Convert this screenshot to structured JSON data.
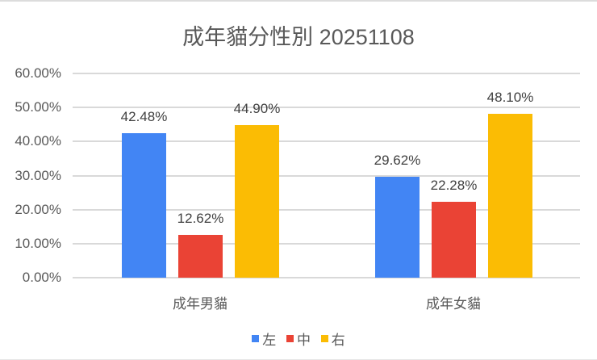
{
  "chart_data": {
    "type": "bar",
    "title": "成年貓分性別 20251108",
    "xlabel": "",
    "ylabel": "",
    "ylim": [
      0,
      0.6
    ],
    "yticks": [
      "0.00%",
      "10.00%",
      "20.00%",
      "30.00%",
      "40.00%",
      "50.00%",
      "60.00%"
    ],
    "grid": true,
    "legend_position": "bottom",
    "categories": [
      "成年男貓",
      "成年女貓"
    ],
    "series": [
      {
        "name": "左",
        "color": "#4285f4",
        "values": [
          0.4248,
          0.2962
        ],
        "labels": [
          "42.48%",
          "29.62%"
        ]
      },
      {
        "name": "中",
        "color": "#ea4335",
        "values": [
          0.1262,
          0.2228
        ],
        "labels": [
          "12.62%",
          "22.28%"
        ]
      },
      {
        "name": "右",
        "color": "#fbbc04",
        "values": [
          0.449,
          0.481
        ],
        "labels": [
          "44.90%",
          "48.10%"
        ]
      }
    ]
  }
}
